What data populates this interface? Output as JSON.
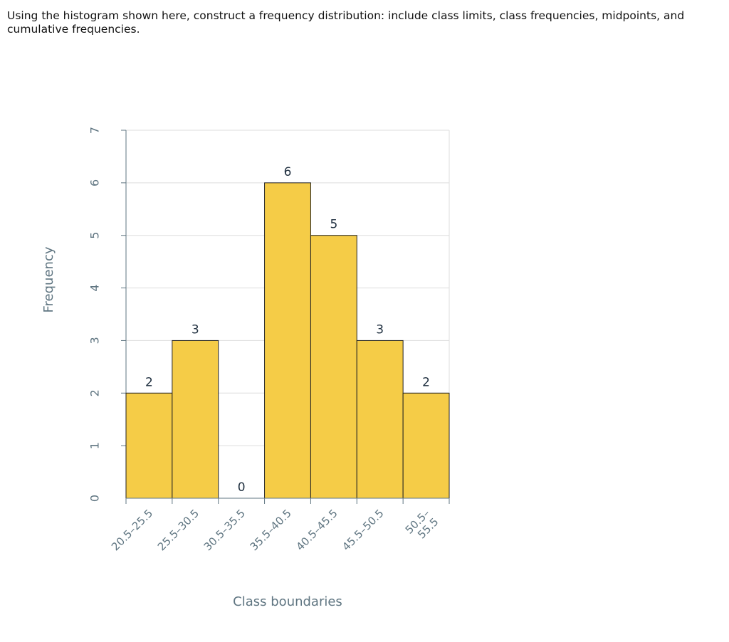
{
  "question": {
    "text": "Using the histogram shown here, construct a frequency distribution: include class limits, class frequencies, midpoints, and cumulative frequencies."
  },
  "colors": {
    "bar_fill": "#f5cc47",
    "bar_stroke": "#222222",
    "grid": "#dddddd",
    "axis": "#5f7581",
    "label": "#203040"
  },
  "chart_data": {
    "type": "bar",
    "title": "",
    "xlabel": "Class boundaries",
    "ylabel": "Frequency",
    "categories": [
      [
        "20.5–25.5"
      ],
      [
        "25.5–30.5"
      ],
      [
        "30.5–35.5"
      ],
      [
        "35.5–40.5"
      ],
      [
        "40.5–45.5"
      ],
      [
        "45.5–50.5"
      ],
      [
        "50.5–",
        "55.5"
      ]
    ],
    "values": [
      2,
      3,
      0,
      6,
      5,
      3,
      2
    ],
    "data_labels": [
      "2",
      "3",
      "0",
      "6",
      "5",
      "3",
      "2"
    ],
    "y_ticks": [
      "0",
      "1",
      "2",
      "3",
      "4",
      "5",
      "6",
      "7"
    ],
    "ylim": [
      0,
      7
    ],
    "grid": true,
    "legend": "none"
  }
}
